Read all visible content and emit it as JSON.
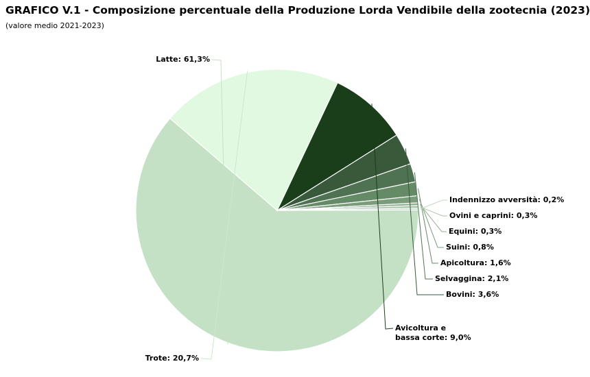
{
  "header": {
    "title": "GRAFICO V.1 - Composizione percentuale della Produzione Lorda Vendibile della zootecnia (2023)",
    "subtitle": "(valore medio 2021-2023)"
  },
  "chart_data": {
    "type": "pie",
    "title": "GRAFICO V.1 - Composizione percentuale della Produzione Lorda Vendibile della zootecnia (2023)",
    "subtitle": "(valore medio 2021-2023)",
    "unit": "%",
    "slices": [
      {
        "label": "Latte",
        "value": 61.3,
        "display": "Latte: 61,3%",
        "color": "#c5e1c5"
      },
      {
        "label": "Trote",
        "value": 20.7,
        "display": "Trote: 20,7%",
        "color": "#e0f9e0"
      },
      {
        "label": "Avicoltura e bassa corte",
        "value": 9.0,
        "display": "Avicoltura e\nbassa corte: 9,0%",
        "color": "#1a3d1a"
      },
      {
        "label": "Bovini",
        "value": 3.6,
        "display": "Bovini: 3,6%",
        "color": "#38593a"
      },
      {
        "label": "Selvaggina",
        "value": 2.1,
        "display": "Selvaggina: 2,1%",
        "color": "#4f7352"
      },
      {
        "label": "Apicoltura",
        "value": 1.6,
        "display": "Apicoltura: 1,6%",
        "color": "#648a66"
      },
      {
        "label": "Suini",
        "value": 0.8,
        "display": "Suini: 0,8%",
        "color": "#7a9c7b"
      },
      {
        "label": "Equini",
        "value": 0.3,
        "display": "Equini: 0,3%",
        "color": "#90ae90"
      },
      {
        "label": "Ovini e caprini",
        "value": 0.3,
        "display": "Ovini e caprini: 0,3%",
        "color": "#a8c4a8"
      },
      {
        "label": "Indennizzo avversità",
        "value": 0.2,
        "display": "Indennizzo avversità: 0,2%",
        "color": "#c0d8c0"
      }
    ]
  }
}
